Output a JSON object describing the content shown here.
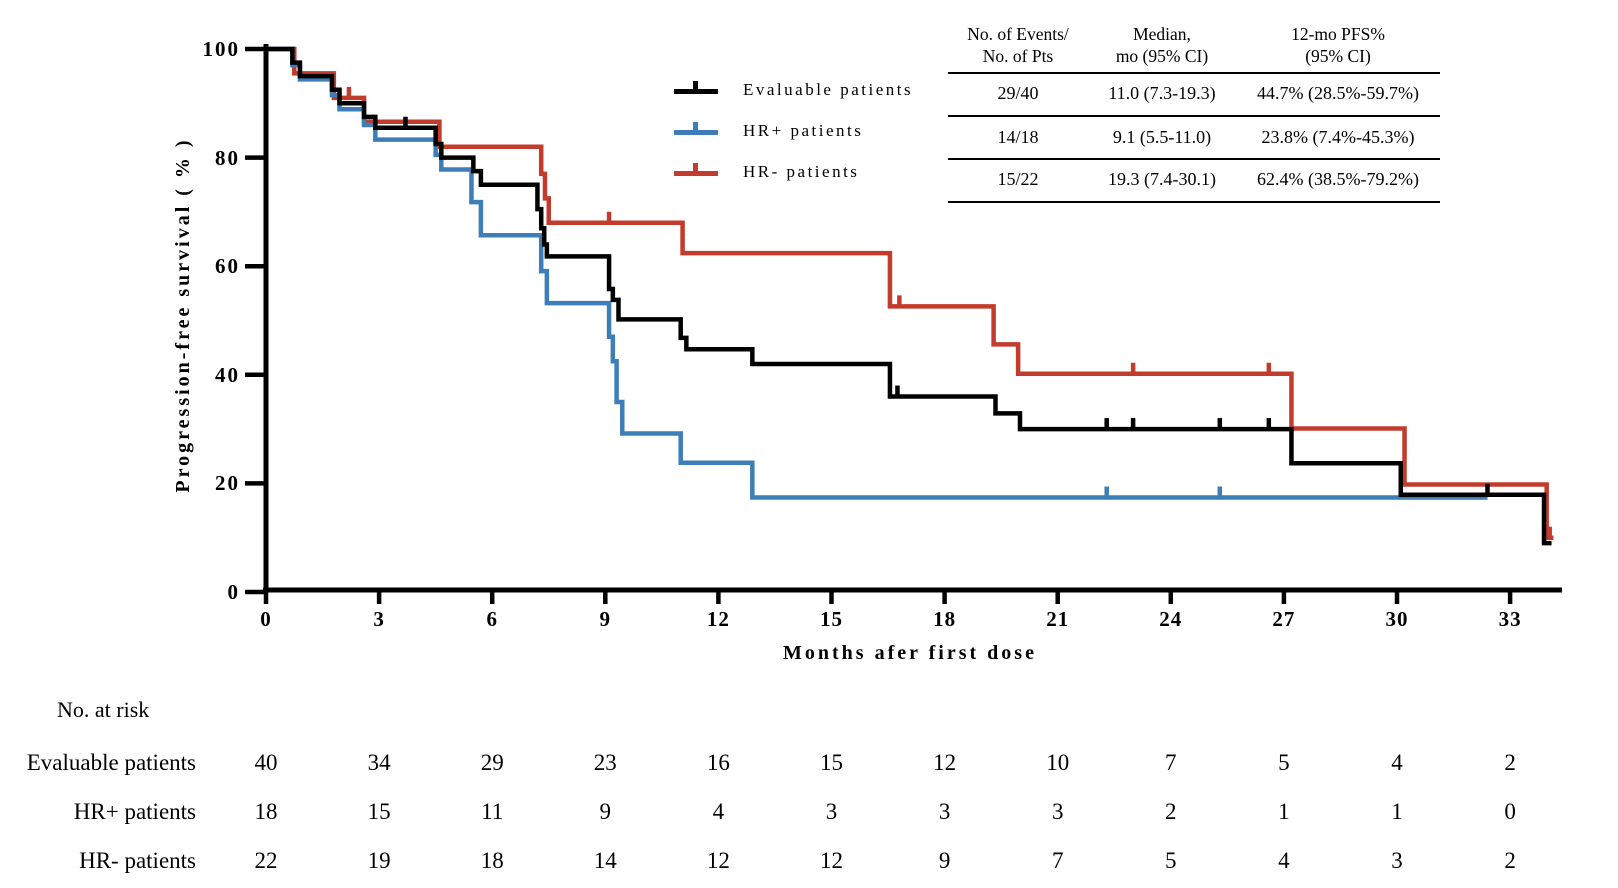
{
  "figure": {
    "y_axis": {
      "title": "Progression-free survival ( % )",
      "ticks": [
        100,
        80,
        60,
        40,
        20,
        0
      ]
    },
    "x_axis": {
      "title": "Months afer first dose",
      "ticks": [
        0,
        3,
        6,
        9,
        12,
        15,
        18,
        21,
        24,
        27,
        30,
        33
      ]
    }
  },
  "legend": {
    "items": [
      {
        "label": "Evaluable patients",
        "color": "#000000"
      },
      {
        "label": "HR+ patients",
        "color": "#3d7db8"
      },
      {
        "label": "HR- patients",
        "color": "#c23b2c"
      }
    ]
  },
  "stats_table": {
    "columns": [
      {
        "line1": "No. of Events/",
        "line2": "No. of Pts"
      },
      {
        "line1": "Median,",
        "line2": "mo (95% CI)"
      },
      {
        "line1": "12-mo PFS%",
        "line2": "(95% CI)"
      }
    ],
    "rows": [
      {
        "events": "29/40",
        "median": "11.0 (7.3-19.3)",
        "pfs12": "44.7% (28.5%-59.7%)"
      },
      {
        "events": "14/18",
        "median": "9.1 (5.5-11.0)",
        "pfs12": "23.8% (7.4%-45.3%)"
      },
      {
        "events": "15/22",
        "median": "19.3 (7.4-30.1)",
        "pfs12": "62.4% (38.5%-79.2%)"
      }
    ]
  },
  "risk_table": {
    "title": "No. at risk",
    "time_points": [
      0,
      3,
      6,
      9,
      12,
      15,
      18,
      21,
      24,
      27,
      30,
      33
    ],
    "rows": [
      {
        "label": "Evaluable patients",
        "counts": [
          40,
          34,
          29,
          23,
          16,
          15,
          12,
          10,
          7,
          5,
          4,
          2
        ]
      },
      {
        "label": "HR+ patients",
        "counts": [
          18,
          15,
          11,
          9,
          4,
          3,
          3,
          3,
          2,
          1,
          1,
          0
        ]
      },
      {
        "label": "HR- patients",
        "counts": [
          22,
          19,
          18,
          14,
          12,
          12,
          9,
          7,
          5,
          4,
          3,
          2
        ]
      }
    ]
  },
  "chart_data": {
    "type": "line",
    "subtype": "kaplan-meier-step",
    "title": "",
    "xlabel": "Months afer first dose",
    "ylabel": "Progression-free survival ( % )",
    "xlim": [
      0,
      34.5
    ],
    "ylim": [
      0,
      100
    ],
    "x_ticks": [
      0,
      3,
      6,
      9,
      12,
      15,
      18,
      21,
      24,
      27,
      30,
      33
    ],
    "y_ticks": [
      0,
      20,
      40,
      60,
      80,
      100
    ],
    "grid": false,
    "legend_position": "upper-center-left",
    "series": [
      {
        "name": "HR- patients",
        "color": "#c23b2c",
        "steps": [
          [
            0,
            100
          ],
          [
            0.75,
            95.5
          ],
          [
            1.8,
            91
          ],
          [
            2.6,
            86.6
          ],
          [
            4.6,
            82
          ],
          [
            7.3,
            77
          ],
          [
            7.4,
            72.5
          ],
          [
            7.5,
            68
          ],
          [
            11.05,
            62.4
          ],
          [
            16.55,
            52.6
          ],
          [
            19.3,
            45.6
          ],
          [
            19.95,
            40.2
          ],
          [
            27.2,
            30.1
          ],
          [
            30.2,
            19.8
          ],
          [
            33.97,
            10.0
          ]
        ],
        "end": 34.15,
        "censors": [
          [
            2.2,
            91
          ],
          [
            9.1,
            68
          ],
          [
            16.8,
            52.6
          ],
          [
            23.0,
            40.2
          ],
          [
            26.6,
            40.2
          ],
          [
            34.05,
            10.0
          ]
        ]
      },
      {
        "name": "HR+ patients",
        "color": "#3d7db8",
        "steps": [
          [
            0,
            100
          ],
          [
            0.7,
            97
          ],
          [
            0.9,
            94.4
          ],
          [
            1.75,
            91.5
          ],
          [
            1.95,
            88.9
          ],
          [
            2.6,
            86
          ],
          [
            2.9,
            83.3
          ],
          [
            4.5,
            80.5
          ],
          [
            4.65,
            77.8
          ],
          [
            5.45,
            71.8
          ],
          [
            5.7,
            65.7
          ],
          [
            7.3,
            59.1
          ],
          [
            7.45,
            53.2
          ],
          [
            9.1,
            47
          ],
          [
            9.2,
            42.5
          ],
          [
            9.3,
            35
          ],
          [
            9.45,
            29.2
          ],
          [
            11.0,
            23.8
          ],
          [
            12.9,
            17.4
          ]
        ],
        "end": 32.4,
        "censors": [
          [
            22.3,
            17.4
          ],
          [
            25.3,
            17.4
          ]
        ]
      },
      {
        "name": "Evaluable patients",
        "color": "#000000",
        "steps": [
          [
            0,
            100
          ],
          [
            0.7,
            97.5
          ],
          [
            0.9,
            95
          ],
          [
            1.75,
            92.5
          ],
          [
            1.95,
            90
          ],
          [
            2.6,
            87.5
          ],
          [
            2.9,
            85.5
          ],
          [
            4.5,
            82.5
          ],
          [
            4.65,
            80
          ],
          [
            5.5,
            77.5
          ],
          [
            5.7,
            75
          ],
          [
            7.2,
            70.5
          ],
          [
            7.3,
            67
          ],
          [
            7.38,
            64
          ],
          [
            7.45,
            61.8
          ],
          [
            9.1,
            55.8
          ],
          [
            9.2,
            53.8
          ],
          [
            9.35,
            50.2
          ],
          [
            11.0,
            46.8
          ],
          [
            11.15,
            44.7
          ],
          [
            12.9,
            42.0
          ],
          [
            16.55,
            36.0
          ],
          [
            19.35,
            32.9
          ],
          [
            20.0,
            30.0
          ],
          [
            27.2,
            23.7
          ],
          [
            30.1,
            17.9
          ],
          [
            33.9,
            9.0
          ]
        ],
        "end": 34.1,
        "censors": [
          [
            3.7,
            85.5
          ],
          [
            16.75,
            36.0
          ],
          [
            22.3,
            30.0
          ],
          [
            23.0,
            30.0
          ],
          [
            25.3,
            30.0
          ],
          [
            26.6,
            30.0
          ],
          [
            32.4,
            17.9
          ]
        ]
      }
    ]
  }
}
